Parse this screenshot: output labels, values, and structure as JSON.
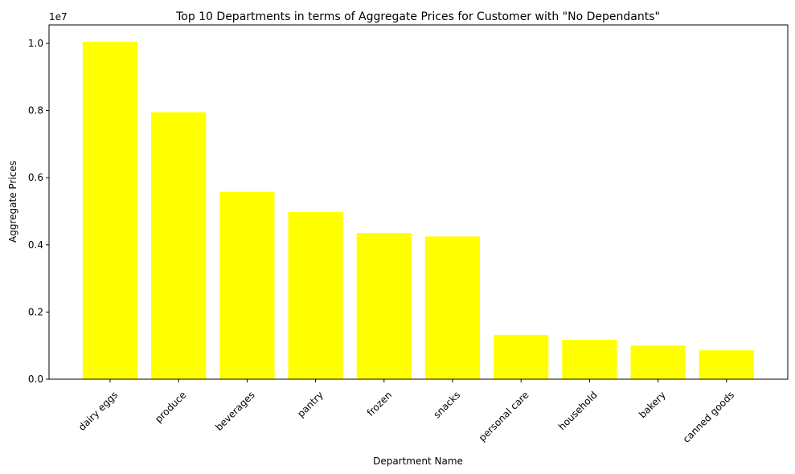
{
  "chart_data": {
    "type": "bar",
    "title": "Top 10 Departments in terms of Aggregate Prices for Customer with \"No Dependants\"",
    "xlabel": "Department Name",
    "ylabel": "Aggregate Prices",
    "y_multiplier_label": "1e7",
    "categories": [
      "dairy eggs",
      "produce",
      "beverages",
      "pantry",
      "frozen",
      "snacks",
      "personal care",
      "household",
      "bakery",
      "canned goods"
    ],
    "values": [
      10050000,
      7950000,
      5580000,
      4980000,
      4350000,
      4250000,
      1320000,
      1170000,
      1000000,
      860000
    ],
    "ylim": [
      0,
      10550000
    ],
    "yticks": [
      0,
      2000000,
      4000000,
      6000000,
      8000000,
      10000000
    ],
    "ytick_labels": [
      "0.0",
      "0.2",
      "0.4",
      "0.6",
      "0.8",
      "1.0"
    ],
    "bar_color": "#ffff00",
    "grid": false,
    "x_tick_rotation": 45
  }
}
